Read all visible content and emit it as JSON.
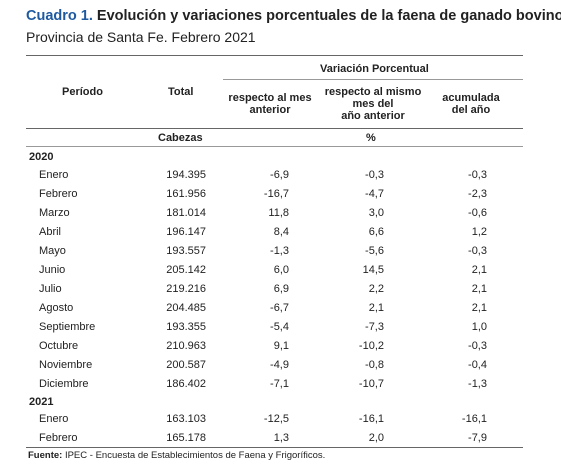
{
  "title": {
    "number": "Cuadro 1.",
    "text": "Evolución y variaciones porcentuales de la faena de ganado bovino"
  },
  "subtitle": "Provincia de Santa Fe. Febrero 2021",
  "headers": {
    "period": "Período",
    "total": "Total",
    "group": "Variación Porcentual",
    "col_prev_month": [
      "respecto al mes",
      "anterior"
    ],
    "col_same_month": [
      "respecto al mismo",
      "mes del",
      "año anterior"
    ],
    "col_accum": [
      "acumulada",
      "del año"
    ],
    "unit_total": "Cabezas",
    "unit_pct": "%"
  },
  "years": [
    {
      "year": "2020",
      "rows": [
        {
          "period": "Enero",
          "total": "194.395",
          "mes_anterior": "-6,9",
          "mismo_mes": "-0,3",
          "acumulada": "-0,3"
        },
        {
          "period": "Febrero",
          "total": "161.956",
          "mes_anterior": "-16,7",
          "mismo_mes": "-4,7",
          "acumulada": "-2,3"
        },
        {
          "period": "Marzo",
          "total": "181.014",
          "mes_anterior": "11,8",
          "mismo_mes": "3,0",
          "acumulada": "-0,6"
        },
        {
          "period": "Abril",
          "total": "196.147",
          "mes_anterior": "8,4",
          "mismo_mes": "6,6",
          "acumulada": "1,2"
        },
        {
          "period": "Mayo",
          "total": "193.557",
          "mes_anterior": "-1,3",
          "mismo_mes": "-5,6",
          "acumulada": "-0,3"
        },
        {
          "period": "Junio",
          "total": "205.142",
          "mes_anterior": "6,0",
          "mismo_mes": "14,5",
          "acumulada": "2,1"
        },
        {
          "period": "Julio",
          "total": "219.216",
          "mes_anterior": "6,9",
          "mismo_mes": "2,2",
          "acumulada": "2,1"
        },
        {
          "period": "Agosto",
          "total": "204.485",
          "mes_anterior": "-6,7",
          "mismo_mes": "2,1",
          "acumulada": "2,1"
        },
        {
          "period": "Septiembre",
          "total": "193.355",
          "mes_anterior": "-5,4",
          "mismo_mes": "-7,3",
          "acumulada": "1,0"
        },
        {
          "period": "Octubre",
          "total": "210.963",
          "mes_anterior": "9,1",
          "mismo_mes": "-10,2",
          "acumulada": "-0,3"
        },
        {
          "period": "Noviembre",
          "total": "200.587",
          "mes_anterior": "-4,9",
          "mismo_mes": "-0,8",
          "acumulada": "-0,4"
        },
        {
          "period": "Diciembre",
          "total": "186.402",
          "mes_anterior": "-7,1",
          "mismo_mes": "-10,7",
          "acumulada": "-1,3"
        }
      ]
    },
    {
      "year": "2021",
      "rows": [
        {
          "period": "Enero",
          "total": "163.103",
          "mes_anterior": "-12,5",
          "mismo_mes": "-16,1",
          "acumulada": "-16,1"
        },
        {
          "period": "Febrero",
          "total": "165.178",
          "mes_anterior": "1,3",
          "mismo_mes": "2,0",
          "acumulada": "-7,9"
        }
      ]
    }
  ],
  "footer": {
    "label": "Fuente:",
    "text": "IPEC - Encuesta de Establecimientos de Faena y Frigoríficos."
  }
}
